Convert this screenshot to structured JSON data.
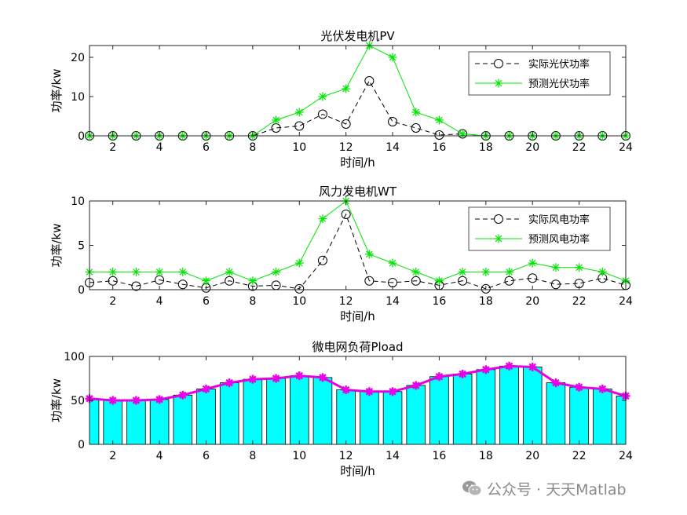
{
  "watermark": {
    "text": "公众号 · 天天Matlab",
    "icon": "wechat-icon"
  },
  "colors": {
    "green": "#00e600",
    "black": "#000000",
    "cyan": "#00ffff",
    "magenta": "#e600e6"
  },
  "chart_data": [
    {
      "type": "line",
      "title": "光伏发电机PV",
      "xlabel": "时间/h",
      "ylabel": "功率/kw",
      "xlim": [
        1,
        24
      ],
      "ylim": [
        0,
        23
      ],
      "xticks": [
        2,
        4,
        6,
        8,
        10,
        12,
        14,
        16,
        18,
        20,
        22,
        24
      ],
      "yticks": [
        0,
        10,
        20
      ],
      "legend_position": "top-right",
      "x": [
        1,
        2,
        3,
        4,
        5,
        6,
        7,
        8,
        9,
        10,
        11,
        12,
        13,
        14,
        15,
        16,
        17,
        18,
        19,
        20,
        21,
        22,
        23,
        24
      ],
      "series": [
        {
          "name": "实际光伏功率",
          "style": "dashed-circle",
          "color": "#000000",
          "values": [
            0,
            0,
            0,
            0,
            0,
            0,
            0,
            0,
            2,
            2.5,
            5.5,
            3,
            14,
            3.6,
            2,
            0.2,
            0.5,
            0,
            0,
            0,
            0,
            0,
            0,
            0
          ]
        },
        {
          "name": "预测光伏功率",
          "style": "solid-star",
          "color": "#00e600",
          "values": [
            0,
            0,
            0,
            0,
            0,
            0,
            0,
            0,
            4,
            6,
            10,
            12,
            23,
            20,
            6,
            4,
            0.5,
            0,
            0,
            0,
            0,
            0,
            0,
            0
          ]
        }
      ]
    },
    {
      "type": "line",
      "title": "风力发电机WT",
      "xlabel": "时间/h",
      "ylabel": "功率/kw",
      "xlim": [
        1,
        24
      ],
      "ylim": [
        0,
        10
      ],
      "xticks": [
        2,
        4,
        6,
        8,
        10,
        12,
        14,
        16,
        18,
        20,
        22,
        24
      ],
      "yticks": [
        0,
        5,
        10
      ],
      "legend_position": "top-right",
      "x": [
        1,
        2,
        3,
        4,
        5,
        6,
        7,
        8,
        9,
        10,
        11,
        12,
        13,
        14,
        15,
        16,
        17,
        18,
        19,
        20,
        21,
        22,
        23,
        24
      ],
      "series": [
        {
          "name": "实际风电功率",
          "style": "dashed-circle",
          "color": "#000000",
          "values": [
            0.8,
            1,
            0.4,
            1.1,
            0.6,
            0.2,
            1,
            0.4,
            0.5,
            0.1,
            3.3,
            8.5,
            1,
            0.8,
            1,
            0.5,
            1,
            0.1,
            1,
            1.3,
            0.6,
            0.7,
            1.3,
            0.5
          ]
        },
        {
          "name": "预测风电功率",
          "style": "solid-star",
          "color": "#00e600",
          "values": [
            2,
            2,
            2,
            2,
            2,
            1,
            2,
            1,
            2,
            3,
            8,
            10,
            4,
            3,
            2,
            1,
            2,
            2,
            2,
            3,
            2.5,
            2.5,
            2,
            1
          ]
        }
      ]
    },
    {
      "type": "bar",
      "title": "微电网负荷Pload",
      "xlabel": "时间/h",
      "ylabel": "功率/kw",
      "xlim": [
        1,
        24
      ],
      "ylim": [
        0,
        100
      ],
      "xticks": [
        2,
        4,
        6,
        8,
        10,
        12,
        14,
        16,
        18,
        20,
        22,
        24
      ],
      "yticks": [
        0,
        50,
        100
      ],
      "x": [
        1,
        2,
        3,
        4,
        5,
        6,
        7,
        8,
        9,
        10,
        11,
        12,
        13,
        14,
        15,
        16,
        17,
        18,
        19,
        20,
        21,
        22,
        23,
        24
      ],
      "series": [
        {
          "style": "bar",
          "color": "#00ffff",
          "values": [
            52,
            50,
            50,
            51,
            56,
            63,
            70,
            74,
            75,
            78,
            76,
            62,
            60,
            60,
            67,
            77,
            80,
            85,
            89,
            88,
            70,
            65,
            63,
            55
          ]
        },
        {
          "style": "solid-star",
          "color": "#e600e6",
          "values": [
            52,
            50,
            50,
            51,
            56,
            63,
            70,
            74,
            75,
            78,
            76,
            62,
            60,
            60,
            67,
            77,
            80,
            85,
            89,
            88,
            70,
            65,
            63,
            55
          ]
        }
      ]
    }
  ]
}
